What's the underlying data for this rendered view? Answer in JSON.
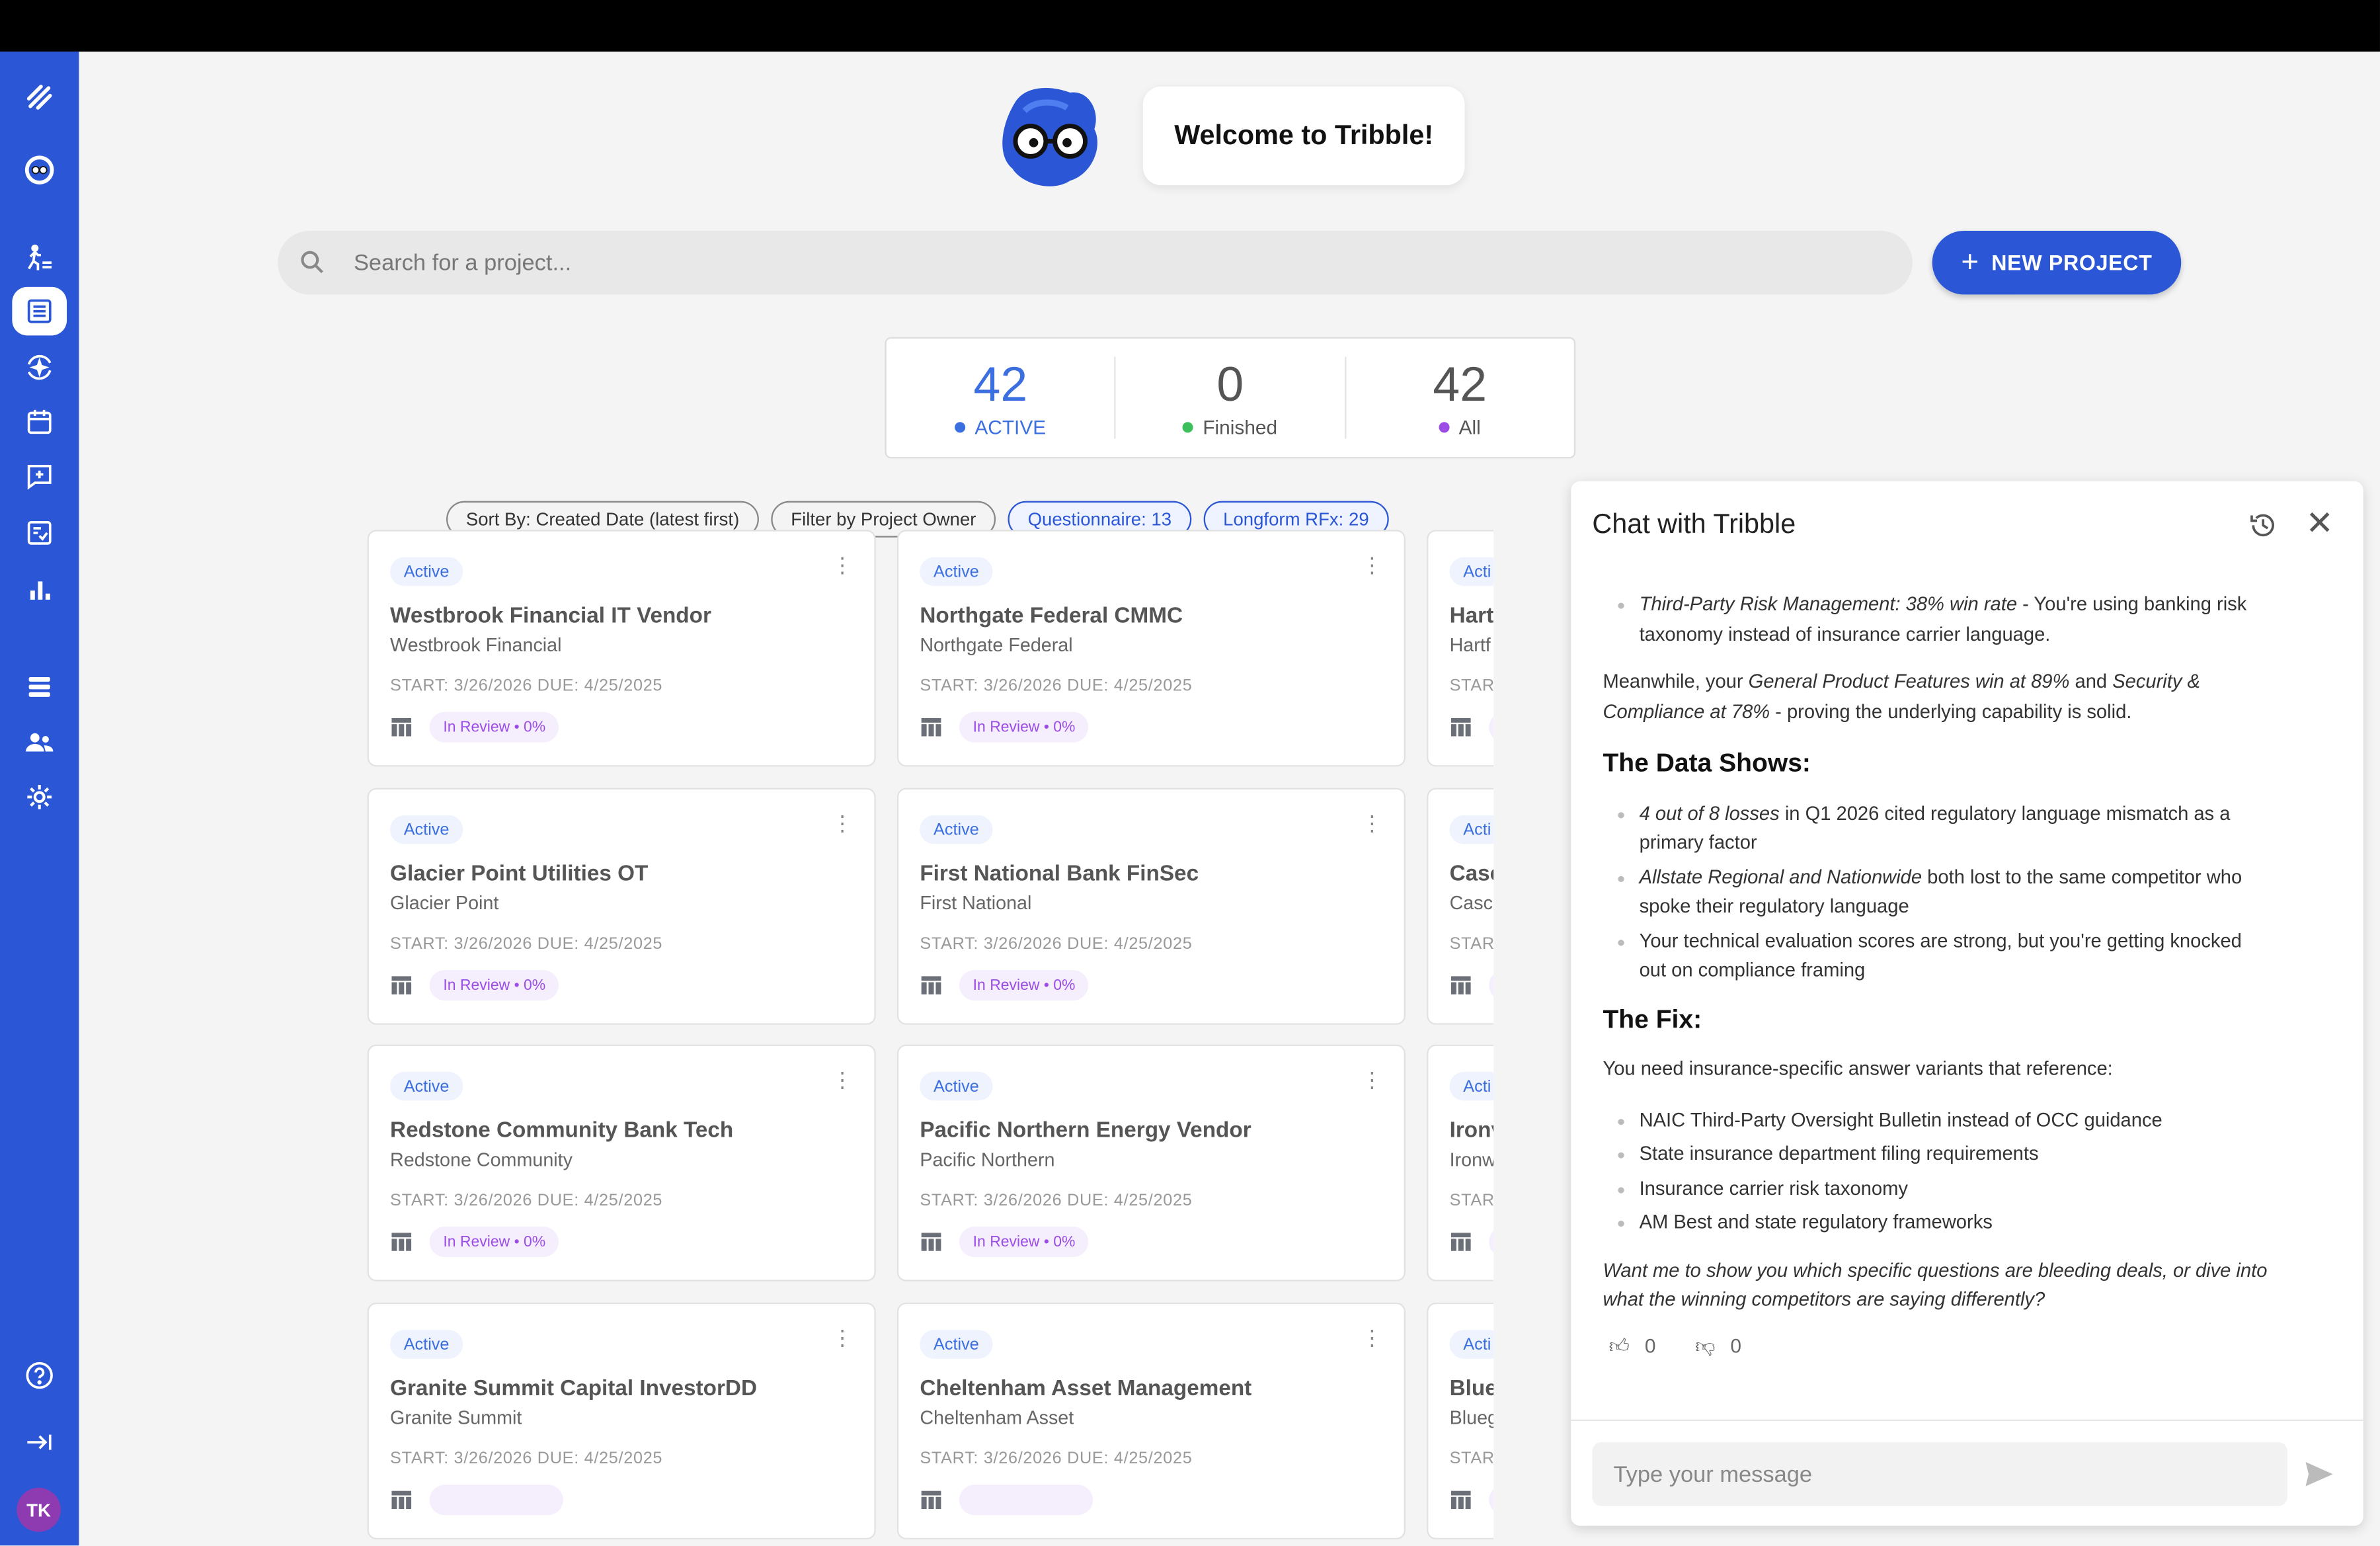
{
  "app": {
    "welcome": "Welcome to Tribble!"
  },
  "sidebar": {
    "items": [
      {
        "icon": "tribble-logo-icon"
      },
      {
        "icon": "tribble-mascot-icon"
      },
      {
        "icon": "onboarding-icon"
      },
      {
        "icon": "projects-list-icon",
        "active": true
      },
      {
        "icon": "sparkle-sync-icon"
      },
      {
        "icon": "calendar-icon"
      },
      {
        "icon": "chat-sparkle-icon"
      },
      {
        "icon": "checklist-icon"
      },
      {
        "icon": "bar-chart-icon"
      },
      {
        "icon": "database-icon"
      },
      {
        "icon": "users-icon"
      },
      {
        "icon": "settings-icon"
      },
      {
        "icon": "help-icon"
      },
      {
        "icon": "collapse-icon"
      }
    ],
    "avatar": "TK",
    "accent": "#2b57d6"
  },
  "search": {
    "placeholder": "Search for a project..."
  },
  "new_project": {
    "label": "NEW PROJECT"
  },
  "stats": [
    {
      "value": "42",
      "label": "ACTIVE",
      "color": "#3b6fe0"
    },
    {
      "value": "0",
      "label": "Finished",
      "color": "#3cbf5a"
    },
    {
      "value": "42",
      "label": "All",
      "color": "#9b4de6"
    }
  ],
  "filters": [
    {
      "label": "Sort By: Created Date (latest first)",
      "style": "default"
    },
    {
      "label": "Filter by Project Owner",
      "style": "default"
    },
    {
      "label": "Questionnaire: 13",
      "style": "blue"
    },
    {
      "label": "Longform RFx: 29",
      "style": "blue"
    }
  ],
  "cards": [
    {
      "badge": "Active",
      "title": "Westbrook Financial IT Vendor",
      "company": "Westbrook Financial",
      "dates": "START: 3/26/2026  DUE: 4/25/2025",
      "status": "In Review • 0%"
    },
    {
      "badge": "Active",
      "title": "Northgate Federal CMMC",
      "company": "Northgate Federal",
      "dates": "START: 3/26/2026  DUE: 4/25/2025",
      "status": "In Review • 0%"
    },
    {
      "badge": "Acti",
      "title": "Hart",
      "company": "Hartf",
      "dates": "STAR",
      "status": ""
    },
    {
      "badge": "Active",
      "title": "Glacier Point Utilities OT",
      "company": "Glacier Point",
      "dates": "START: 3/26/2026  DUE: 4/25/2025",
      "status": "In Review • 0%"
    },
    {
      "badge": "Active",
      "title": "First National Bank FinSec",
      "company": "First National",
      "dates": "START: 3/26/2026  DUE: 4/25/2025",
      "status": "In Review • 0%"
    },
    {
      "badge": "Acti",
      "title": "Casc",
      "company": "Casc",
      "dates": "STAR",
      "status": ""
    },
    {
      "badge": "Active",
      "title": "Redstone Community Bank Tech",
      "company": "Redstone Community",
      "dates": "START: 3/26/2026  DUE: 4/25/2025",
      "status": "In Review • 0%"
    },
    {
      "badge": "Active",
      "title": "Pacific Northern Energy Vendor",
      "company": "Pacific Northern",
      "dates": "START: 3/26/2026  DUE: 4/25/2025",
      "status": "In Review • 0%"
    },
    {
      "badge": "Acti",
      "title": "Ironv",
      "company": "Ironw",
      "dates": "STAR",
      "status": ""
    },
    {
      "badge": "Active",
      "title": "Granite Summit Capital InvestorDD",
      "company": "Granite Summit",
      "dates": "START: 3/26/2026  DUE: 4/25/2025",
      "status": ""
    },
    {
      "badge": "Active",
      "title": "Cheltenham Asset Management",
      "company": "Cheltenham Asset",
      "dates": "START: 3/26/2026  DUE: 4/25/2025",
      "status": ""
    },
    {
      "badge": "Acti",
      "title": "Blue",
      "company": "Blueg",
      "dates": "STAR",
      "status": ""
    }
  ],
  "chat": {
    "title": "Chat with Tribble",
    "b1_italic": "Third-Party Risk Management: 38% win rate",
    "b1_rest": " - You're using banking risk taxonomy instead of insurance carrier language.",
    "p1_a": "Meanwhile, your ",
    "p1_b": "General Product Features win at 89%",
    "p1_c": " and ",
    "p1_d": "Security & Compliance at 78%",
    "p1_e": " - proving the underlying capability is solid.",
    "h1": "The Data Shows:",
    "d1_italic": "4 out of 8 losses",
    "d1_rest": " in Q1 2026 cited regulatory language mismatch as a primary factor",
    "d2_italic": "Allstate Regional and Nationwide",
    "d2_rest": " both lost to the same competitor who spoke their regulatory language",
    "d3": "Your technical evaluation scores are strong, but you're getting knocked out on compliance framing",
    "h2": "The Fix:",
    "p2": "You need insurance-specific answer variants that reference:",
    "fixes": [
      "NAIC Third-Party Oversight Bulletin instead of OCC guidance",
      "State insurance department filing requirements",
      "Insurance carrier risk taxonomy",
      "AM Best and state regulatory frameworks"
    ],
    "closing": "Want me to show you which specific questions are bleeding deals, or dive into what the winning competitors are saying differently?",
    "thumbs_up": "0",
    "thumbs_down": "0",
    "input_placeholder": "Type your message"
  }
}
